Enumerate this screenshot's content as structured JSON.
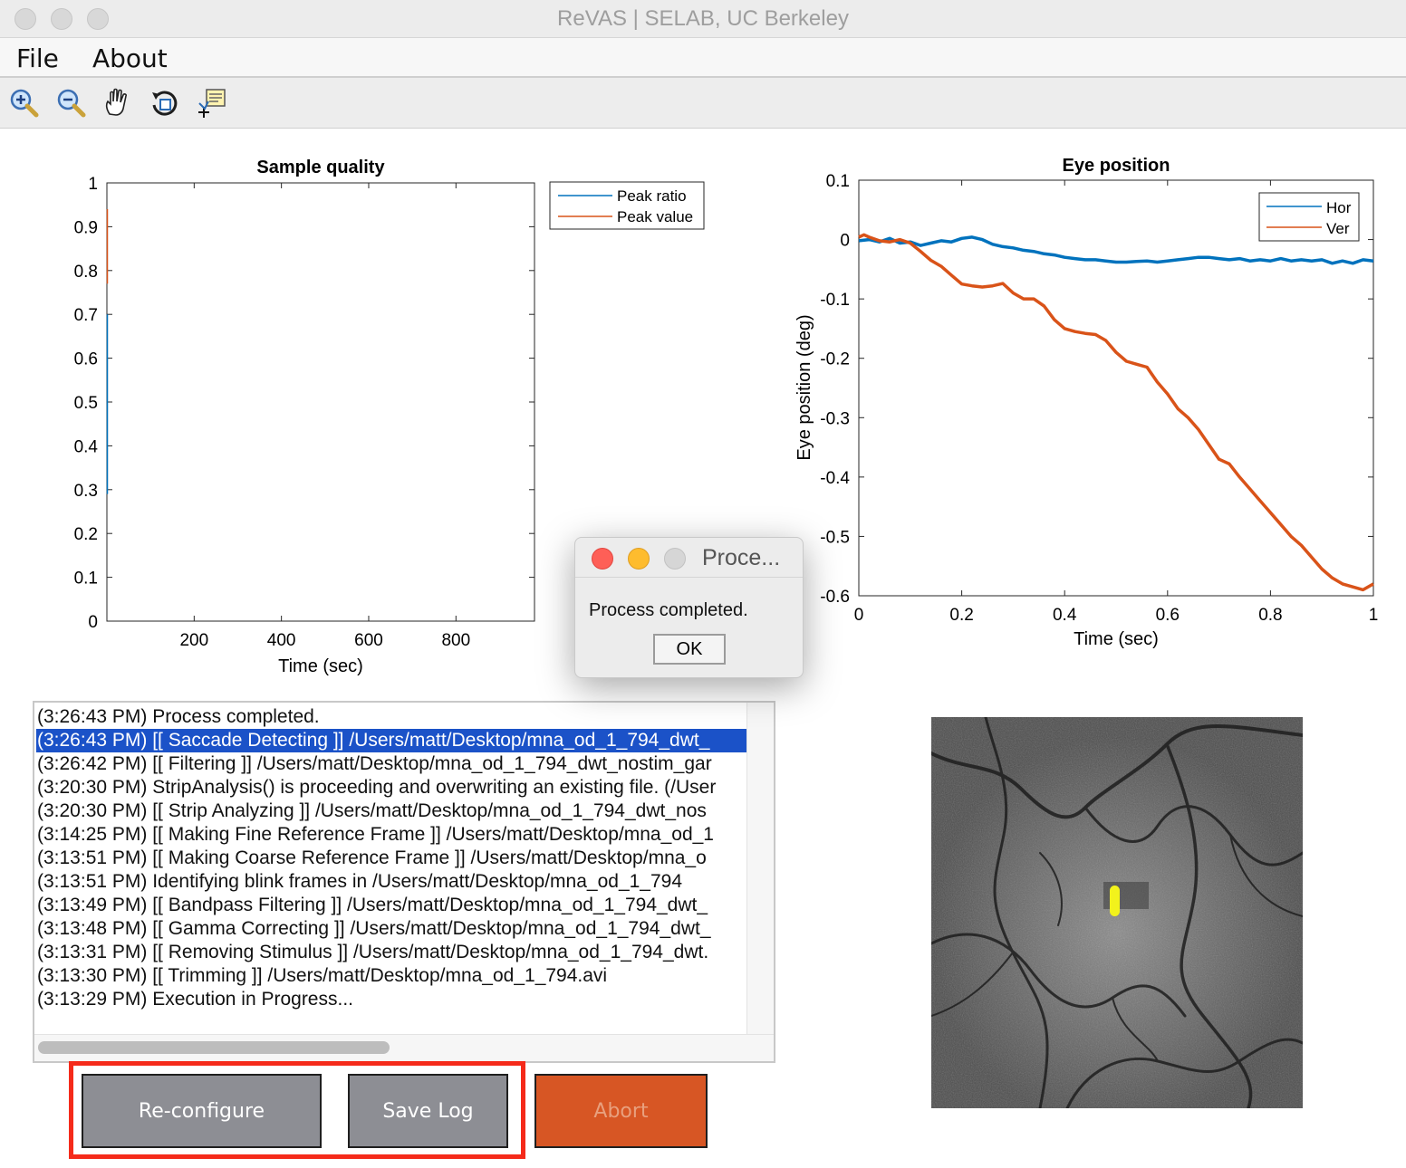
{
  "window": {
    "title": "ReVAS | SELAB, UC Berkeley"
  },
  "menu": {
    "file": "File",
    "about": "About"
  },
  "toolbar": [
    "zoom-in-icon",
    "zoom-out-icon",
    "pan-hand-icon",
    "rotate-3d-icon",
    "data-cursor-icon"
  ],
  "sample_quality": {
    "title": "Sample quality",
    "xlabel": "Time (sec)",
    "ylabel": "",
    "legend": [
      "Peak ratio",
      "Peak value"
    ]
  },
  "eye_position": {
    "title": "Eye position",
    "xlabel": "Time (sec)",
    "ylabel": "Eye position (deg)",
    "legend": [
      "Hor",
      "Ver"
    ]
  },
  "chart_data": [
    {
      "type": "line",
      "title": "Sample quality",
      "xlabel": "Time (sec)",
      "ylabel": "",
      "xlim": [
        0,
        980
      ],
      "ylim": [
        0,
        1
      ],
      "x_ticks": [
        "200",
        "400",
        "600",
        "800"
      ],
      "y_ticks": [
        "0",
        "0.1",
        "0.2",
        "0.3",
        "0.4",
        "0.5",
        "0.6",
        "0.7",
        "0.8",
        "0.9",
        "1"
      ],
      "legend_position": "top-right, outside",
      "series": [
        {
          "name": "Peak ratio",
          "color": "#0072bd",
          "x": [
            1,
            1,
            1,
            1
          ],
          "y": [
            0.29,
            0.36,
            0.55,
            0.7
          ]
        },
        {
          "name": "Peak value",
          "color": "#d95319",
          "x": [
            1,
            1,
            1
          ],
          "y": [
            0.77,
            0.85,
            0.94
          ]
        }
      ]
    },
    {
      "type": "line",
      "title": "Eye position",
      "xlabel": "Time (sec)",
      "ylabel": "Eye position (deg)",
      "xlim": [
        0,
        1
      ],
      "ylim": [
        -0.6,
        0.1
      ],
      "x_ticks": [
        "0",
        "0.2",
        "0.4",
        "0.6",
        "0.8",
        "1"
      ],
      "y_ticks": [
        "0.1",
        "0",
        "-0.1",
        "-0.2",
        "-0.3",
        "-0.4",
        "-0.5",
        "-0.6"
      ],
      "legend_position": "top-right",
      "series": [
        {
          "name": "Hor",
          "color": "#0072bd",
          "x": [
            0,
            0.02,
            0.04,
            0.06,
            0.08,
            0.1,
            0.12,
            0.14,
            0.16,
            0.18,
            0.2,
            0.22,
            0.24,
            0.26,
            0.28,
            0.3,
            0.32,
            0.34,
            0.36,
            0.38,
            0.4,
            0.42,
            0.44,
            0.46,
            0.48,
            0.5,
            0.52,
            0.54,
            0.56,
            0.58,
            0.6,
            0.62,
            0.64,
            0.66,
            0.68,
            0.7,
            0.72,
            0.74,
            0.76,
            0.78,
            0.8,
            0.82,
            0.84,
            0.86,
            0.88,
            0.9,
            0.92,
            0.94,
            0.96,
            0.98,
            1.0
          ],
          "y": [
            -0.002,
            0.0,
            -0.004,
            0.002,
            -0.006,
            -0.004,
            -0.01,
            -0.006,
            -0.002,
            -0.004,
            0.002,
            0.004,
            0.0,
            -0.008,
            -0.012,
            -0.014,
            -0.018,
            -0.02,
            -0.024,
            -0.026,
            -0.03,
            -0.032,
            -0.034,
            -0.034,
            -0.036,
            -0.038,
            -0.038,
            -0.037,
            -0.036,
            -0.038,
            -0.036,
            -0.034,
            -0.032,
            -0.03,
            -0.03,
            -0.032,
            -0.034,
            -0.032,
            -0.036,
            -0.034,
            -0.036,
            -0.032,
            -0.036,
            -0.034,
            -0.036,
            -0.034,
            -0.04,
            -0.036,
            -0.04,
            -0.034,
            -0.036
          ]
        },
        {
          "name": "Ver",
          "color": "#d95319",
          "x": [
            0,
            0.01,
            0.02,
            0.04,
            0.06,
            0.08,
            0.1,
            0.12,
            0.14,
            0.16,
            0.18,
            0.2,
            0.22,
            0.24,
            0.26,
            0.28,
            0.3,
            0.32,
            0.34,
            0.36,
            0.38,
            0.4,
            0.42,
            0.44,
            0.46,
            0.48,
            0.5,
            0.52,
            0.54,
            0.56,
            0.58,
            0.6,
            0.62,
            0.64,
            0.66,
            0.68,
            0.7,
            0.72,
            0.74,
            0.76,
            0.78,
            0.8,
            0.82,
            0.84,
            0.86,
            0.88,
            0.9,
            0.92,
            0.94,
            0.96,
            0.98,
            1.0
          ],
          "y": [
            0.004,
            0.008,
            0.004,
            -0.002,
            -0.004,
            0.0,
            -0.006,
            -0.02,
            -0.035,
            -0.045,
            -0.06,
            -0.075,
            -0.078,
            -0.08,
            -0.078,
            -0.074,
            -0.09,
            -0.1,
            -0.1,
            -0.112,
            -0.135,
            -0.15,
            -0.155,
            -0.158,
            -0.16,
            -0.17,
            -0.19,
            -0.205,
            -0.21,
            -0.215,
            -0.24,
            -0.26,
            -0.285,
            -0.3,
            -0.32,
            -0.345,
            -0.37,
            -0.378,
            -0.4,
            -0.42,
            -0.44,
            -0.46,
            -0.48,
            -0.5,
            -0.515,
            -0.535,
            -0.555,
            -0.57,
            -0.58,
            -0.585,
            -0.59,
            -0.58
          ]
        }
      ]
    }
  ],
  "log": {
    "lines": [
      "(3:26:43 PM) Process completed.",
      "(3:26:43 PM) [[ Saccade Detecting ]] /Users/matt/Desktop/mna_od_1_794_dwt_",
      "(3:26:42 PM) [[ Filtering ]] /Users/matt/Desktop/mna_od_1_794_dwt_nostim_gar",
      "(3:20:30 PM) StripAnalysis() is proceeding and overwriting an existing file. (/User",
      "(3:20:30 PM) [[ Strip Analyzing ]] /Users/matt/Desktop/mna_od_1_794_dwt_nos",
      "(3:14:25 PM) [[ Making Fine Reference Frame ]] /Users/matt/Desktop/mna_od_1",
      "(3:13:51 PM) [[ Making Coarse Reference Frame ]] /Users/matt/Desktop/mna_o",
      "(3:13:51 PM) Identifying blink frames in /Users/matt/Desktop/mna_od_1_794",
      "(3:13:49 PM) [[ Bandpass Filtering ]] /Users/matt/Desktop/mna_od_1_794_dwt_",
      "(3:13:48 PM) [[ Gamma Correcting ]] /Users/matt/Desktop/mna_od_1_794_dwt_",
      "(3:13:31 PM) [[ Removing Stimulus ]] /Users/matt/Desktop/mna_od_1_794_dwt.",
      "(3:13:30 PM) [[ Trimming ]] /Users/matt/Desktop/mna_od_1_794.avi",
      "(3:13:29 PM) Execution in Progress..."
    ],
    "selected_index": 1
  },
  "buttons": {
    "reconfigure": "Re-configure",
    "save_log": "Save Log",
    "abort": "Abort"
  },
  "dialog": {
    "title": "Proce...",
    "message": "Process completed.",
    "ok": "OK"
  },
  "colors": {
    "highlight": "#f52a1a",
    "selection": "#1b52c8",
    "button_gray": "#8d8e94",
    "abort": "#d75624",
    "hor_trace": "#0072bd",
    "ver_trace": "#d95319",
    "marker": "#f2f21c"
  }
}
